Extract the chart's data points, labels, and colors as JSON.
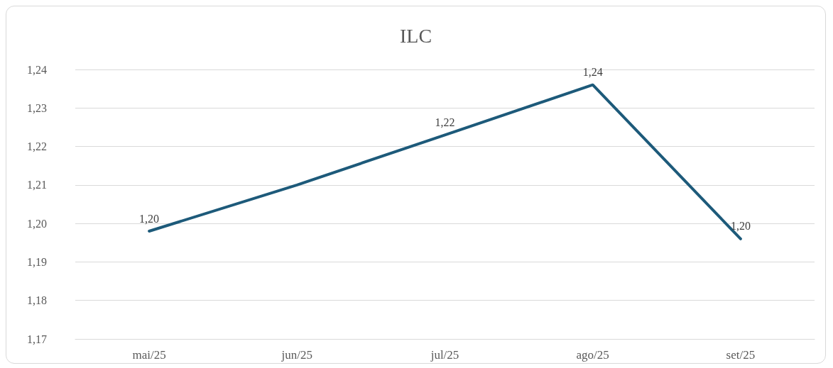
{
  "chart_data": {
    "type": "line",
    "title": "ILC",
    "categories": [
      "mai/25",
      "jun/25",
      "jul/25",
      "ago/25",
      "set/25"
    ],
    "series": [
      {
        "color": "#1d5a7a",
        "values": [
          1.198,
          1.21,
          1.223,
          1.236,
          1.196
        ],
        "value_labels": [
          "1,20",
          null,
          "1,22",
          "1,24",
          "1,20"
        ]
      }
    ],
    "ylim": [
      1.17,
      1.24
    ],
    "yticks": [
      {
        "value": 1.17,
        "label": "1,17"
      },
      {
        "value": 1.18,
        "label": "1,18"
      },
      {
        "value": 1.19,
        "label": "1,19"
      },
      {
        "value": 1.2,
        "label": "1,20"
      },
      {
        "value": 1.21,
        "label": "1,21"
      },
      {
        "value": 1.22,
        "label": "1,22"
      },
      {
        "value": 1.23,
        "label": "1,23"
      },
      {
        "value": 1.24,
        "label": "1,24"
      }
    ],
    "grid": "y",
    "marker": "none",
    "line_style": "solid"
  }
}
